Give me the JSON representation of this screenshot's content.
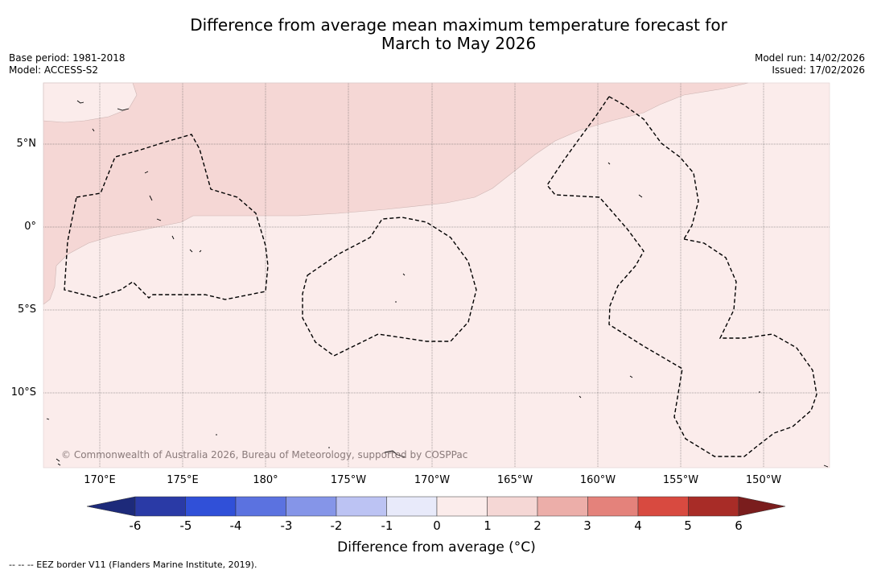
{
  "title": {
    "line1": "Difference from average mean maximum temperature forecast for",
    "line2": "March to May 2026"
  },
  "meta": {
    "base_period": "Base period: 1981-2018",
    "model": "Model: ACCESS-S2",
    "model_run": "Model run: 14/02/2026",
    "issued": "Issued: 17/02/2026"
  },
  "map": {
    "lat_labels": [
      "5°N",
      "0°",
      "5°S",
      "10°S"
    ],
    "lon_labels": [
      "170°E",
      "175°E",
      "180°",
      "175°W",
      "170°W",
      "165°W",
      "160°W",
      "155°W",
      "150°W"
    ],
    "copyright": "© Commonwealth of Australia 2026, Bureau of Meteorology, supported by COSPPac",
    "regions": [
      {
        "category": "1 to 2",
        "color": "#f5d7d5"
      },
      {
        "category": "0 to 1",
        "color": "#fbeceb"
      }
    ]
  },
  "legend": {
    "ticks": [
      "-6",
      "-5",
      "-4",
      "-3",
      "-2",
      "-1",
      "0",
      "1",
      "2",
      "3",
      "4",
      "5",
      "6"
    ],
    "colors": [
      "#1d2a7a",
      "#2a3aa6",
      "#3050d8",
      "#5b72e0",
      "#8595e8",
      "#bcc3f3",
      "#e8eafa",
      "#fbeceb",
      "#f5d7d5",
      "#ecaea9",
      "#e4827b",
      "#d84a40",
      "#a82c27",
      "#7a1d1d"
    ],
    "title": "Difference from average (°C)"
  },
  "footnote": "--  --  -- EEZ border V11 (Flanders Marine Institute, 2019)."
}
